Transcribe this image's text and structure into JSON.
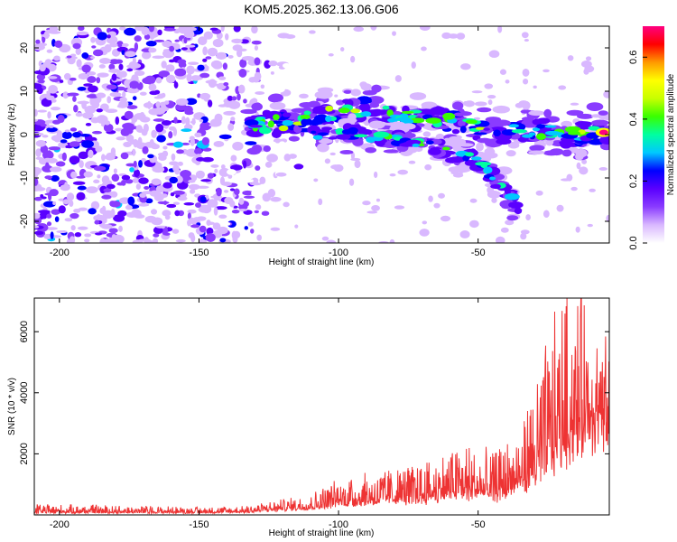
{
  "title": "KOM5.2025.362.13.06.G06",
  "chart_data": [
    {
      "type": "heatmap",
      "name": "spectrogram",
      "xlabel": "Height of straight line (km)",
      "ylabel": "Frequency (Hz)",
      "xlim": [
        -209,
        -3
      ],
      "ylim": [
        -25,
        25
      ],
      "xticks": [
        -200,
        -150,
        -100,
        -50
      ],
      "xtick_labels": [
        "-200",
        "-150",
        "-100",
        "-50"
      ],
      "yticks": [
        -20,
        -10,
        0,
        10,
        20
      ],
      "ytick_labels": [
        "-20",
        "-10",
        "0",
        "10",
        "20"
      ],
      "colorbar": {
        "label": "Normalized spectral amplitude",
        "range": [
          0,
          0.7
        ],
        "ticks": [
          0.0,
          0.2,
          0.4,
          0.6
        ],
        "tick_labels": [
          "0.0",
          "0.2",
          "0.4",
          "0.6"
        ],
        "colormap": [
          "#ffffff",
          "#d9b8ff",
          "#8a3cff",
          "#5a00ff",
          "#0000ff",
          "#00c8ff",
          "#00ffa0",
          "#39ff00",
          "#c8ff00",
          "#ffff00",
          "#ff9900",
          "#ff0000",
          "#ff0080"
        ]
      },
      "features": {
        "noise_region_km": [
          -209,
          -110
        ],
        "noise_level_max": 0.28,
        "main_band": [
          {
            "x": -133,
            "y": 2
          },
          {
            "x": -115,
            "y": 3
          },
          {
            "x": -100,
            "y": 5
          },
          {
            "x": -90,
            "y": 6
          },
          {
            "x": -75,
            "y": 4
          },
          {
            "x": -60,
            "y": 3.5
          },
          {
            "x": -45,
            "y": 0.5
          },
          {
            "x": -30,
            "y": 1
          },
          {
            "x": -15,
            "y": 0
          },
          {
            "x": -3,
            "y": 1
          }
        ],
        "secondary_band": [
          {
            "x": -110,
            "y": 0
          },
          {
            "x": -95,
            "y": 0
          },
          {
            "x": -80,
            "y": -1
          },
          {
            "x": -65,
            "y": -3
          },
          {
            "x": -50,
            "y": -6
          },
          {
            "x": -40,
            "y": -13
          },
          {
            "x": -35,
            "y": -18
          }
        ],
        "peak_amplitude": 0.7,
        "peak_location": {
          "x": -5,
          "y": 0.5
        }
      }
    },
    {
      "type": "line",
      "name": "snr",
      "xlabel": "Height of straight line (km)",
      "ylabel": "SNR (10 * v/v)",
      "xlim": [
        -209,
        -3
      ],
      "ylim": [
        0,
        7100
      ],
      "xticks": [
        -200,
        -150,
        -100,
        -50
      ],
      "xtick_labels": [
        "-200",
        "-150",
        "-100",
        "-50"
      ],
      "yticks": [
        2000,
        4000,
        6000
      ],
      "ytick_labels": [
        "2000",
        "4000",
        "6000"
      ],
      "color": "#ee3333",
      "series": [
        {
          "name": "SNR",
          "envelope": [
            {
              "x": -209,
              "baseline": 60,
              "peak": 350
            },
            {
              "x": -190,
              "baseline": 60,
              "peak": 330
            },
            {
              "x": -170,
              "baseline": 60,
              "peak": 300
            },
            {
              "x": -150,
              "baseline": 60,
              "peak": 260
            },
            {
              "x": -135,
              "baseline": 70,
              "peak": 300
            },
            {
              "x": -120,
              "baseline": 150,
              "peak": 500
            },
            {
              "x": -110,
              "baseline": 200,
              "peak": 700
            },
            {
              "x": -100,
              "baseline": 300,
              "peak": 1200
            },
            {
              "x": -85,
              "baseline": 400,
              "peak": 1500
            },
            {
              "x": -70,
              "baseline": 450,
              "peak": 1700
            },
            {
              "x": -55,
              "baseline": 600,
              "peak": 2400
            },
            {
              "x": -45,
              "baseline": 500,
              "peak": 2000
            },
            {
              "x": -35,
              "baseline": 800,
              "peak": 2800
            },
            {
              "x": -25,
              "baseline": 1500,
              "peak": 5700
            },
            {
              "x": -20,
              "baseline": 2000,
              "peak": 7000
            },
            {
              "x": -10,
              "baseline": 2600,
              "peak": 7000
            },
            {
              "x": -3,
              "baseline": 2500,
              "peak": 5000
            }
          ]
        }
      ]
    }
  ]
}
